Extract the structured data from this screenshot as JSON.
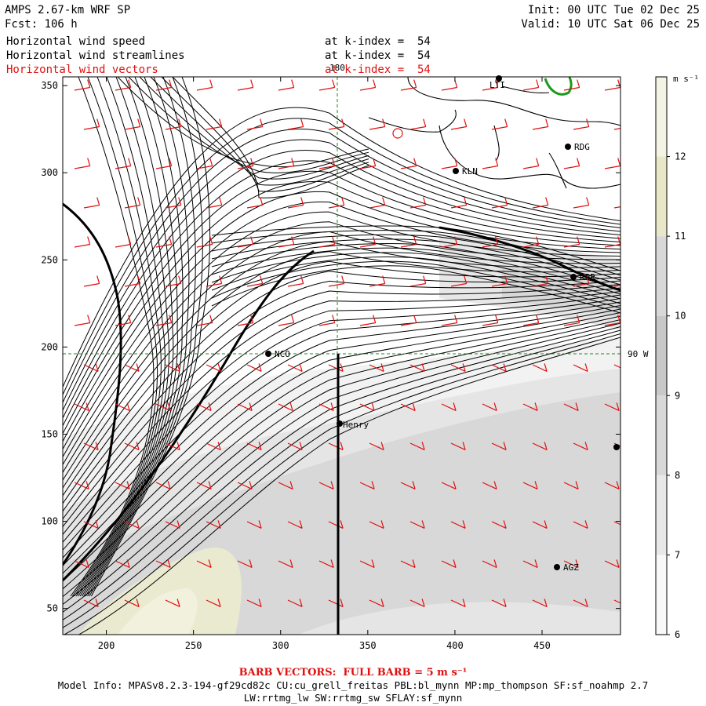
{
  "header": {
    "title": "AMPS 2.67-km WRF SP",
    "fcst": "Fcst: 106 h",
    "init": "Init: 00 UTC Tue 02 Dec 25",
    "valid": "Valid: 10 UTC Sat 06 Dec 25"
  },
  "fields": [
    {
      "name": "Horizontal wind speed",
      "level": "at k-index =  54"
    },
    {
      "name": "Horizontal wind streamlines",
      "level": "at k-index =  54"
    },
    {
      "name": "Horizontal wind vectors",
      "level": "at k-index =  54"
    }
  ],
  "map": {
    "x_ticks": [
      "200",
      "250",
      "300",
      "350",
      "400",
      "450"
    ],
    "y_ticks": [
      "350",
      "300",
      "250",
      "200",
      "150",
      "100",
      "50"
    ],
    "meridian_label": "180",
    "parallel_label": "90 W",
    "stations": [
      "KLN",
      "RDG",
      "NCO",
      "Henry",
      "AGZ",
      "LTI",
      "RPR"
    ]
  },
  "colorbar": {
    "unit": "m s⁻¹",
    "ticks": [
      "12",
      "11",
      "10",
      "9",
      "8",
      "7",
      "6"
    ],
    "colors": [
      "#f4f4e4",
      "#e8e8c8",
      "#d8d8d8",
      "#c8c8c8",
      "#d8d8d8",
      "#e8e8e8",
      "#f8f8f8"
    ]
  },
  "footer": {
    "barb": "BARB VECTORS:  FULL BARB = 5 m s⁻¹",
    "model_info": "Model Info: MPASv8.2.3-194-gf29cd82c CU:cu_grell_freitas PBL:bl_mynn MP:mp_thompson SF:sf_noahmp 2.7",
    "model_info2": "LW:rrtmg_lw SW:rrtmg_sw SFLAY:sf_mynn"
  }
}
